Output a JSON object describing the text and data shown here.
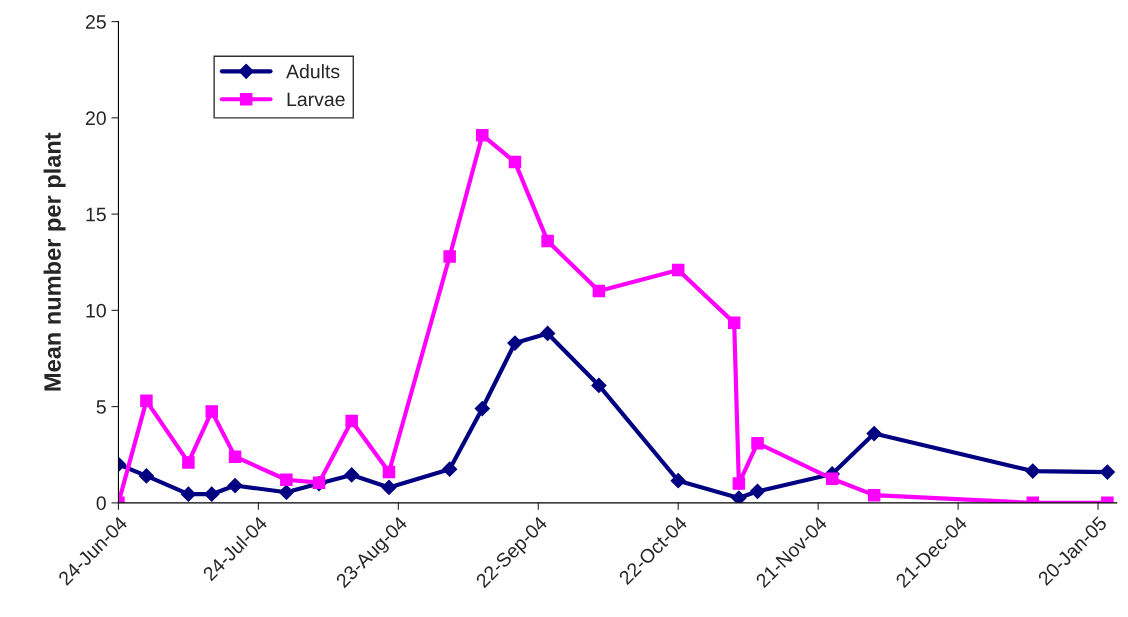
{
  "chart_data": {
    "type": "line",
    "ylabel": "Mean number per plant",
    "x": [
      "2004-06-24",
      "2004-06-30",
      "2004-07-09",
      "2004-07-14",
      "2004-07-19",
      "2004-07-30",
      "2004-08-06",
      "2004-08-13",
      "2004-08-21",
      "2004-09-03",
      "2004-09-10",
      "2004-09-17",
      "2004-09-24",
      "2004-10-05",
      "2004-10-22",
      "2004-11-04",
      "2004-11-08",
      "2004-11-24",
      "2004-12-03",
      "2005-01-06",
      "2005-01-22"
    ],
    "series": [
      {
        "name": "Adults",
        "color": "#000080",
        "marker": "diamond",
        "values": [
          2.0,
          1.4,
          0.45,
          0.45,
          0.9,
          0.55,
          1.0,
          1.45,
          0.8,
          1.75,
          4.9,
          8.3,
          8.8,
          6.1,
          1.15,
          0.25,
          0.6,
          1.5,
          3.6,
          1.65,
          1.6
        ]
      },
      {
        "name": "Larvae",
        "color": "#ff00ff",
        "marker": "square",
        "x": [
          "2004-06-24",
          "2004-06-30",
          "2004-07-09",
          "2004-07-14",
          "2004-07-19",
          "2004-07-30",
          "2004-08-06",
          "2004-08-13",
          "2004-08-21",
          "2004-09-03",
          "2004-09-10",
          "2004-09-17",
          "2004-09-24",
          "2004-10-05",
          "2004-10-22",
          "2004-11-03",
          "2004-11-04",
          "2004-11-08",
          "2004-11-24",
          "2004-12-03",
          "2005-01-06",
          "2005-01-22"
        ],
        "values": [
          0,
          5.3,
          2.1,
          4.75,
          2.4,
          1.2,
          1.05,
          4.25,
          1.6,
          12.8,
          19.1,
          17.7,
          13.6,
          11.0,
          12.1,
          9.35,
          1.0,
          3.1,
          1.25,
          0.4,
          0,
          0
        ]
      }
    ],
    "xlim": [
      "2004-06-24",
      "2005-01-24"
    ],
    "xticks": [
      {
        "value": "2004-06-24",
        "label": "24-Jun-04"
      },
      {
        "value": "2004-07-24",
        "label": "24-Jul-04"
      },
      {
        "value": "2004-08-23",
        "label": "23-Aug-04"
      },
      {
        "value": "2004-09-22",
        "label": "22-Sep-04"
      },
      {
        "value": "2004-10-22",
        "label": "22-Oct-04"
      },
      {
        "value": "2004-11-21",
        "label": "21-Nov-04"
      },
      {
        "value": "2004-12-21",
        "label": "21-Dec-04"
      },
      {
        "value": "2005-01-20",
        "label": "20-Jan-05"
      }
    ],
    "ylim": [
      0,
      25
    ],
    "yticks": [
      0,
      5,
      10,
      15,
      20,
      25
    ],
    "grid": false,
    "legend": "top left",
    "line_style": "solid"
  }
}
